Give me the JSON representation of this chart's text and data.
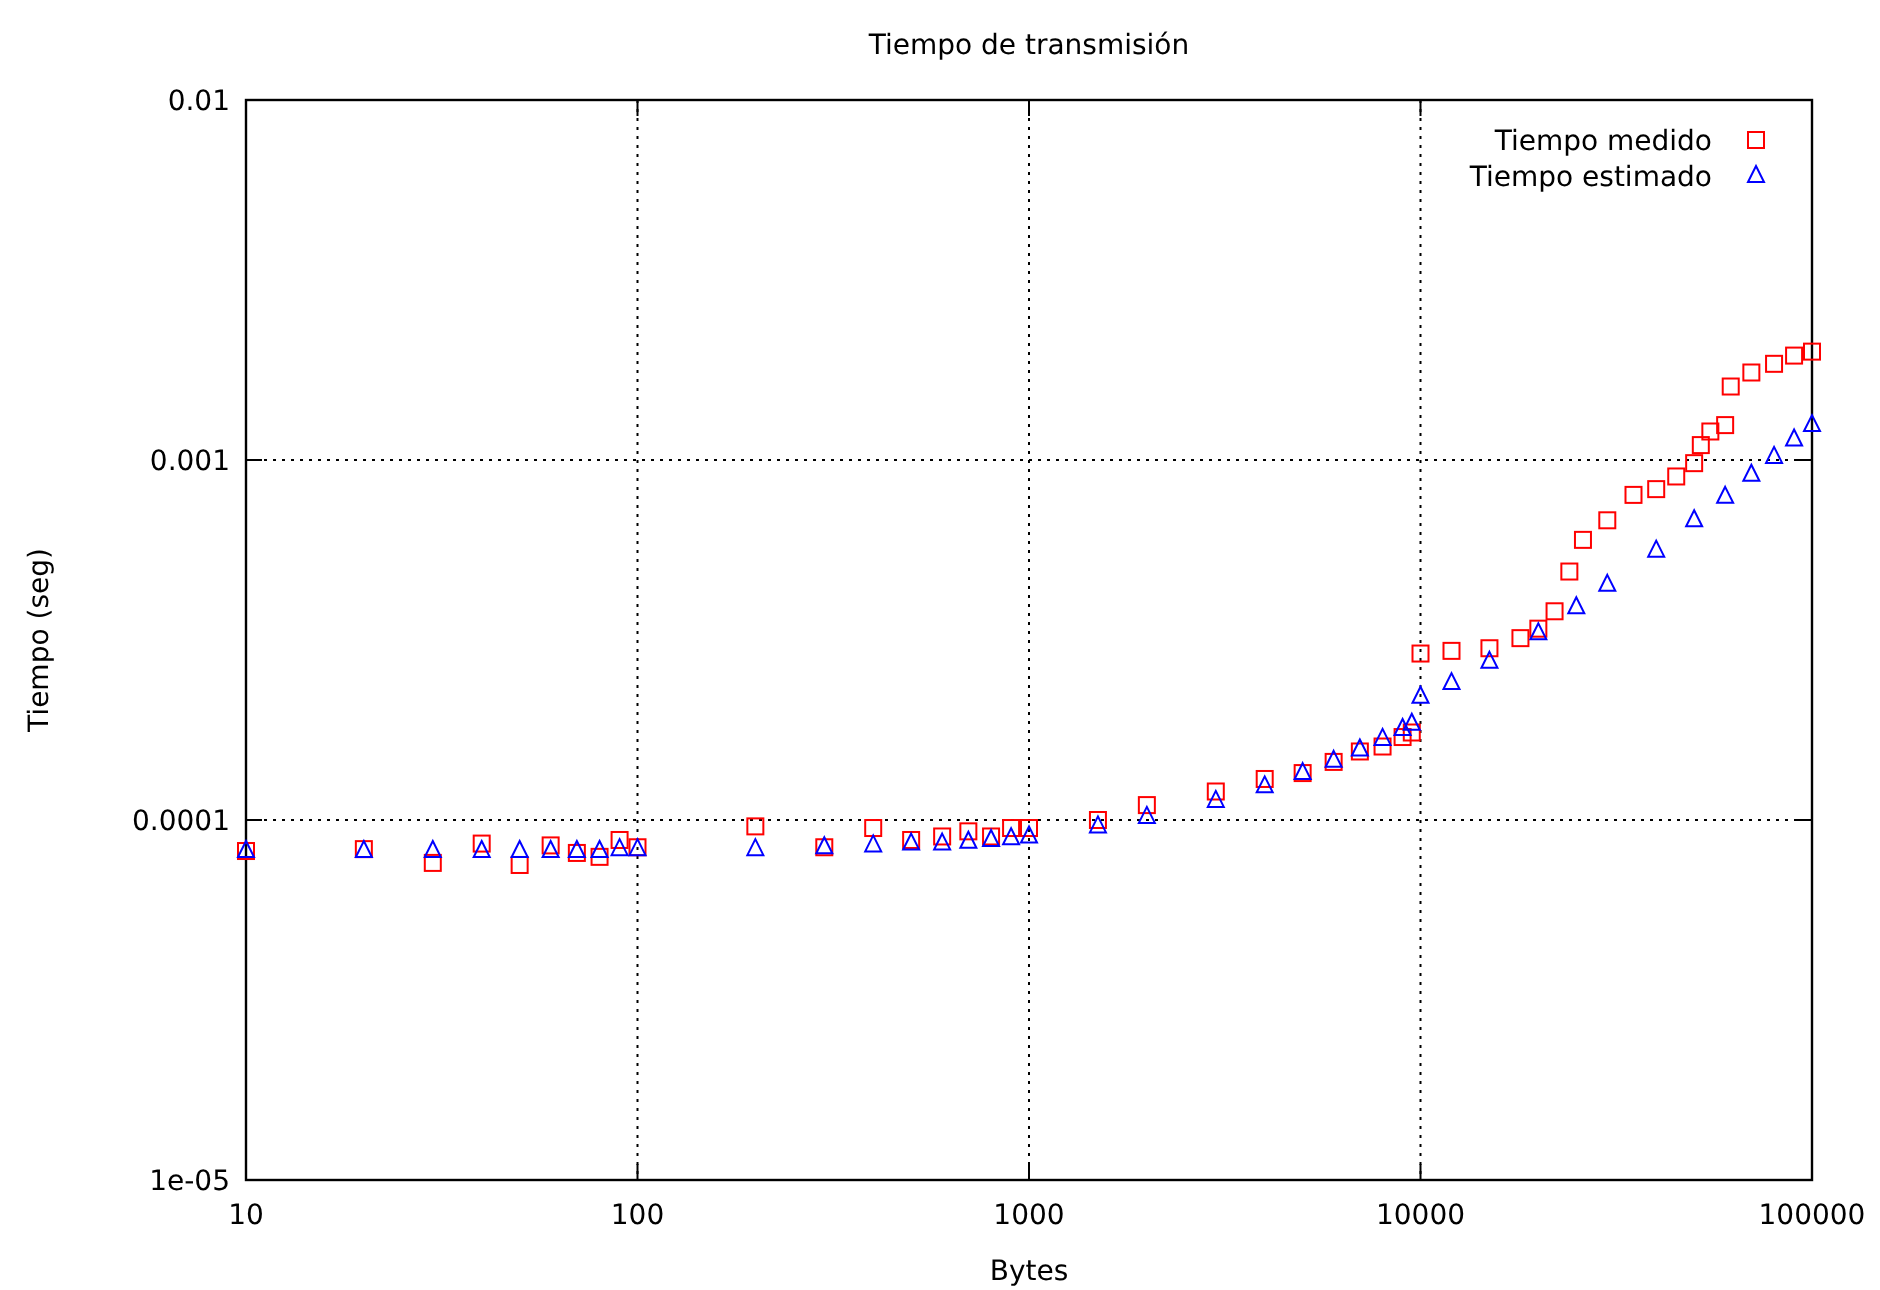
{
  "chart_data": {
    "type": "scatter",
    "title": "Tiempo de transmisión",
    "xlabel": "Bytes",
    "ylabel": "Tiempo (seg)",
    "log": "xy",
    "grid": true,
    "legend": "top right",
    "xlim": [
      10,
      100000
    ],
    "xticks": [
      10,
      100,
      1000,
      10000,
      100000
    ],
    "ylim": [
      1e-05,
      0.01
    ],
    "yticks": [
      {
        "value": 0.01,
        "label": "0.01"
      },
      {
        "value": 0.001,
        "label": "0.001"
      },
      {
        "value": 0.0001,
        "label": "0.0001"
      },
      {
        "value": 1e-05,
        "label": "1e-05"
      }
    ],
    "series": [
      {
        "name": "Tiempo medido",
        "color": "#ff0000",
        "marker": "square",
        "x": [
          10,
          20,
          30,
          40,
          50,
          60,
          70,
          80,
          90,
          100,
          200,
          300,
          400,
          500,
          600,
          700,
          800,
          900,
          1000,
          1500,
          2000,
          3000,
          4000,
          5000,
          6000,
          7000,
          8000,
          9000,
          9500,
          10000,
          12000,
          15000,
          18000,
          20000,
          22000,
          24000,
          26000,
          30000,
          35000,
          40000,
          45000,
          50000,
          52000,
          55000,
          60000,
          62000,
          70000,
          80000,
          90000,
          100000
        ],
        "values": [
          8.2e-05,
          8.3e-05,
          7.6e-05,
          8.6e-05,
          7.5e-05,
          8.5e-05,
          8.1e-05,
          7.9e-05,
          8.8e-05,
          8.4e-05,
          9.6e-05,
          8.4e-05,
          9.5e-05,
          8.8e-05,
          9e-05,
          9.3e-05,
          9e-05,
          9.5e-05,
          9.5e-05,
          0.0001,
          0.00011,
          0.00012,
          0.00013,
          0.000135,
          0.000145,
          0.000155,
          0.00016,
          0.00017,
          0.000175,
          0.00029,
          0.000295,
          0.0003,
          0.00032,
          0.00034,
          0.00038,
          0.00049,
          0.0006,
          0.00068,
          0.0008,
          0.00083,
          0.0009,
          0.00098,
          0.0011,
          0.0012,
          0.00125,
          0.0016,
          0.00175,
          0.00185,
          0.00195,
          0.002
        ]
      },
      {
        "name": "Tiempo estimado",
        "color": "#0000ff",
        "marker": "triangle",
        "x": [
          10,
          20,
          30,
          40,
          50,
          60,
          70,
          80,
          90,
          100,
          200,
          300,
          400,
          500,
          600,
          700,
          800,
          900,
          1000,
          1500,
          2000,
          3000,
          4000,
          5000,
          6000,
          7000,
          8000,
          9000,
          9500,
          10000,
          12000,
          15000,
          20000,
          25000,
          30000,
          40000,
          50000,
          60000,
          70000,
          80000,
          90000,
          100000
        ],
        "values": [
          8.2e-05,
          8.2e-05,
          8.2e-05,
          8.2e-05,
          8.2e-05,
          8.2e-05,
          8.2e-05,
          8.2e-05,
          8.3e-05,
          8.3e-05,
          8.3e-05,
          8.4e-05,
          8.5e-05,
          8.6e-05,
          8.6e-05,
          8.7e-05,
          8.8e-05,
          8.9e-05,
          9e-05,
          9.6e-05,
          0.000102,
          0.000113,
          0.000124,
          0.000135,
          0.000146,
          0.000157,
          0.000168,
          0.000179,
          0.000185,
          0.00022,
          0.00024,
          0.000275,
          0.00033,
          0.00039,
          0.00045,
          0.00056,
          0.00068,
          0.00079,
          0.00091,
          0.00102,
          0.00114,
          0.00125
        ]
      }
    ]
  }
}
